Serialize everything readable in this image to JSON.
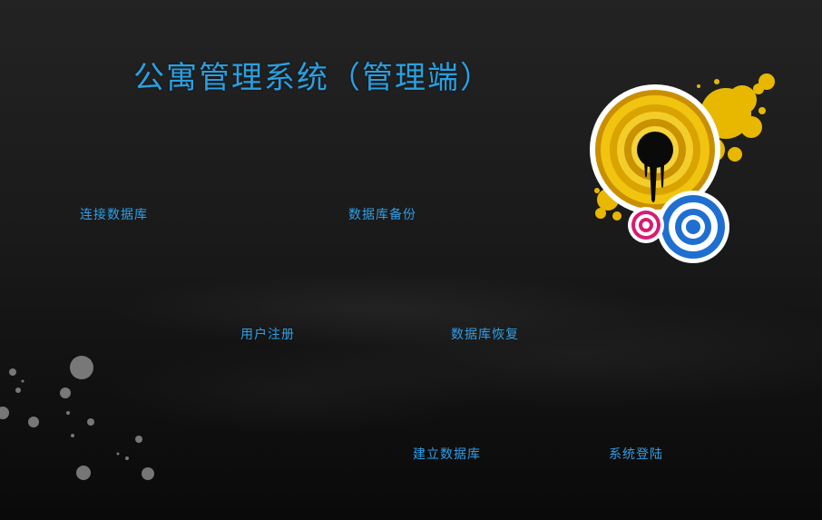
{
  "app": {
    "title": "公寓管理系统（管理端）"
  },
  "menu": {
    "connect_db": "连接数据库",
    "backup_db": "数据库备份",
    "user_register": "用户注册",
    "restore_db": "数据库恢复",
    "create_db": "建立数据库",
    "system_login": "系统登陆"
  },
  "colors": {
    "accent_text": "#2f9fe6",
    "target_gold": "#e8b800",
    "target_blue": "#1f6fd1",
    "target_pink": "#d81b73"
  },
  "icons": {
    "decoration_top_right": "dartboard-targets-icon",
    "decoration_bottom_left": "paint-splatter-icon"
  }
}
